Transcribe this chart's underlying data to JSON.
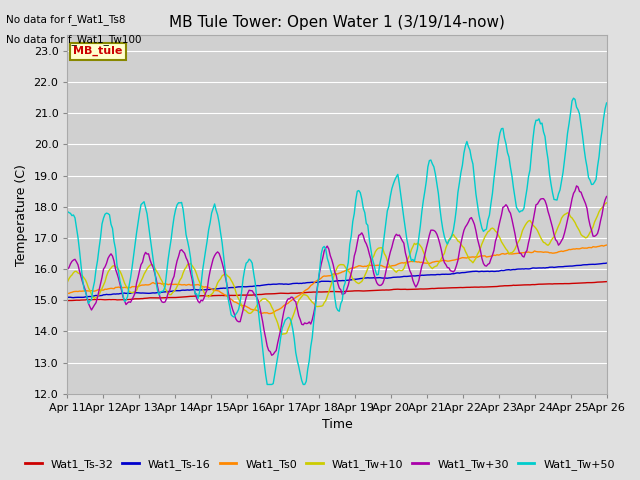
{
  "title": "MB Tule Tower: Open Water 1 (3/19/14-now)",
  "xlabel": "Time",
  "ylabel": "Temperature (C)",
  "no_data_lines": [
    "No data for f_Wat1_Ts8",
    "No data for f_Wat1_Tw100"
  ],
  "legend_box_label": "MB_tule",
  "ylim": [
    12.0,
    23.5
  ],
  "ytick_min": 12.0,
  "ytick_max": 23.0,
  "ytick_step": 1.0,
  "x_tick_labels": [
    "Apr 11",
    "Apr 12",
    "Apr 13",
    "Apr 14",
    "Apr 15",
    "Apr 16",
    "Apr 17",
    "Apr 18",
    "Apr 19",
    "Apr 20",
    "Apr 21",
    "Apr 22",
    "Apr 23",
    "Apr 24",
    "Apr 25",
    "Apr 26"
  ],
  "n_days": 15,
  "series_colors": {
    "Wat1_Ts-32": "#cc0000",
    "Wat1_Ts-16": "#0000cc",
    "Wat1_Ts0": "#ff8800",
    "Wat1_Tw+10": "#cccc00",
    "Wat1_Tw+30": "#aa00aa",
    "Wat1_Tw+50": "#00cccc"
  },
  "series_order": [
    "Wat1_Ts-32",
    "Wat1_Ts-16",
    "Wat1_Ts0",
    "Wat1_Tw+10",
    "Wat1_Tw+30",
    "Wat1_Tw+50"
  ],
  "bg_color": "#e0e0e0",
  "plot_bg_color": "#d0d0d0",
  "grid_color": "#ffffff",
  "legend_box_bg": "#ffffcc",
  "legend_box_border": "#888800",
  "title_fontsize": 11,
  "axis_label_fontsize": 9,
  "tick_fontsize": 8,
  "legend_fontsize": 8,
  "linewidth": 1.0
}
